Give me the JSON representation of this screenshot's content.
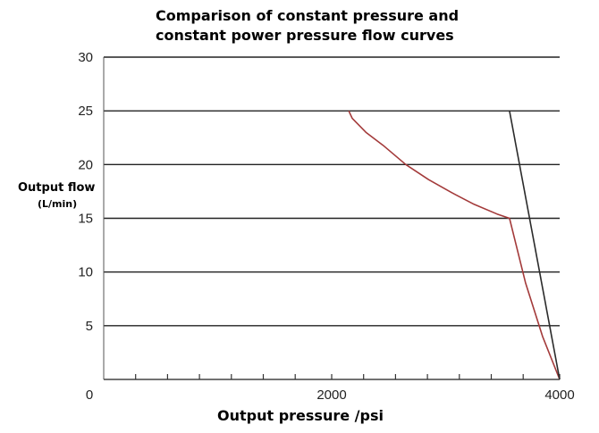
{
  "chart_data": {
    "type": "line",
    "title": [
      "Comparison of constant pressure and",
      "constant power pressure flow curves"
    ],
    "ylabel": "Output flow",
    "ylabel_unit": "(L/min)",
    "xlabel": "Output pressure  /psi",
    "xlim": [
      0,
      4000
    ],
    "ylim": [
      0,
      30
    ],
    "x_tick_labels": [
      "0",
      "2000",
      "4000"
    ],
    "x_tick_values": [
      0,
      2000,
      4000
    ],
    "x_minor_ticks": [
      280,
      560,
      840,
      1120,
      1400,
      1680,
      2000,
      2280,
      2560,
      2840,
      3120,
      3400,
      3680,
      4000
    ],
    "y_ticks": [
      5,
      10,
      15,
      20,
      25,
      30
    ],
    "grid": "horizontal",
    "series": [
      {
        "color": "#a33a3a",
        "points": [
          [
            2150,
            25
          ],
          [
            2180,
            24.3
          ],
          [
            2300,
            23
          ],
          [
            2450,
            21.8
          ],
          [
            2650,
            20
          ],
          [
            2850,
            18.6
          ],
          [
            3050,
            17.4
          ],
          [
            3250,
            16.3
          ],
          [
            3450,
            15.4
          ],
          [
            3560,
            15
          ],
          [
            3700,
            9
          ],
          [
            3850,
            4
          ],
          [
            4000,
            0
          ]
        ]
      },
      {
        "color": "#2b2b2b",
        "points": [
          [
            3560,
            25
          ],
          [
            4000,
            0
          ]
        ]
      }
    ]
  }
}
